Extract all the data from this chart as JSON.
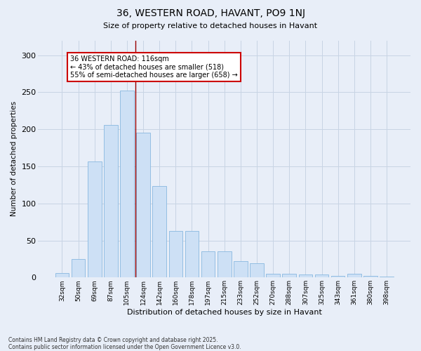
{
  "title": "36, WESTERN ROAD, HAVANT, PO9 1NJ",
  "subtitle": "Size of property relative to detached houses in Havant",
  "xlabel": "Distribution of detached houses by size in Havant",
  "ylabel": "Number of detached properties",
  "categories": [
    "32sqm",
    "50sqm",
    "69sqm",
    "87sqm",
    "105sqm",
    "124sqm",
    "142sqm",
    "160sqm",
    "178sqm",
    "197sqm",
    "215sqm",
    "233sqm",
    "252sqm",
    "270sqm",
    "288sqm",
    "307sqm",
    "325sqm",
    "343sqm",
    "361sqm",
    "380sqm",
    "398sqm"
  ],
  "values": [
    6,
    25,
    157,
    206,
    252,
    195,
    123,
    63,
    63,
    35,
    35,
    22,
    19,
    5,
    5,
    4,
    4,
    2,
    5,
    2,
    1
  ],
  "bar_color": "#cde0f5",
  "bar_edge_color": "#88b8e0",
  "grid_color": "#c8d4e4",
  "background_color": "#e8eef8",
  "vline_color": "#990000",
  "vline_x": 4.5,
  "annotation_box_text": "36 WESTERN ROAD: 116sqm\n← 43% of detached houses are smaller (518)\n55% of semi-detached houses are larger (658) →",
  "box_facecolor": "white",
  "box_edgecolor": "#cc0000",
  "footer": "Contains HM Land Registry data © Crown copyright and database right 2025.\nContains public sector information licensed under the Open Government Licence v3.0.",
  "ylim": [
    0,
    320
  ],
  "yticks": [
    0,
    50,
    100,
    150,
    200,
    250,
    300
  ],
  "figsize": [
    6.0,
    5.0
  ],
  "dpi": 100
}
